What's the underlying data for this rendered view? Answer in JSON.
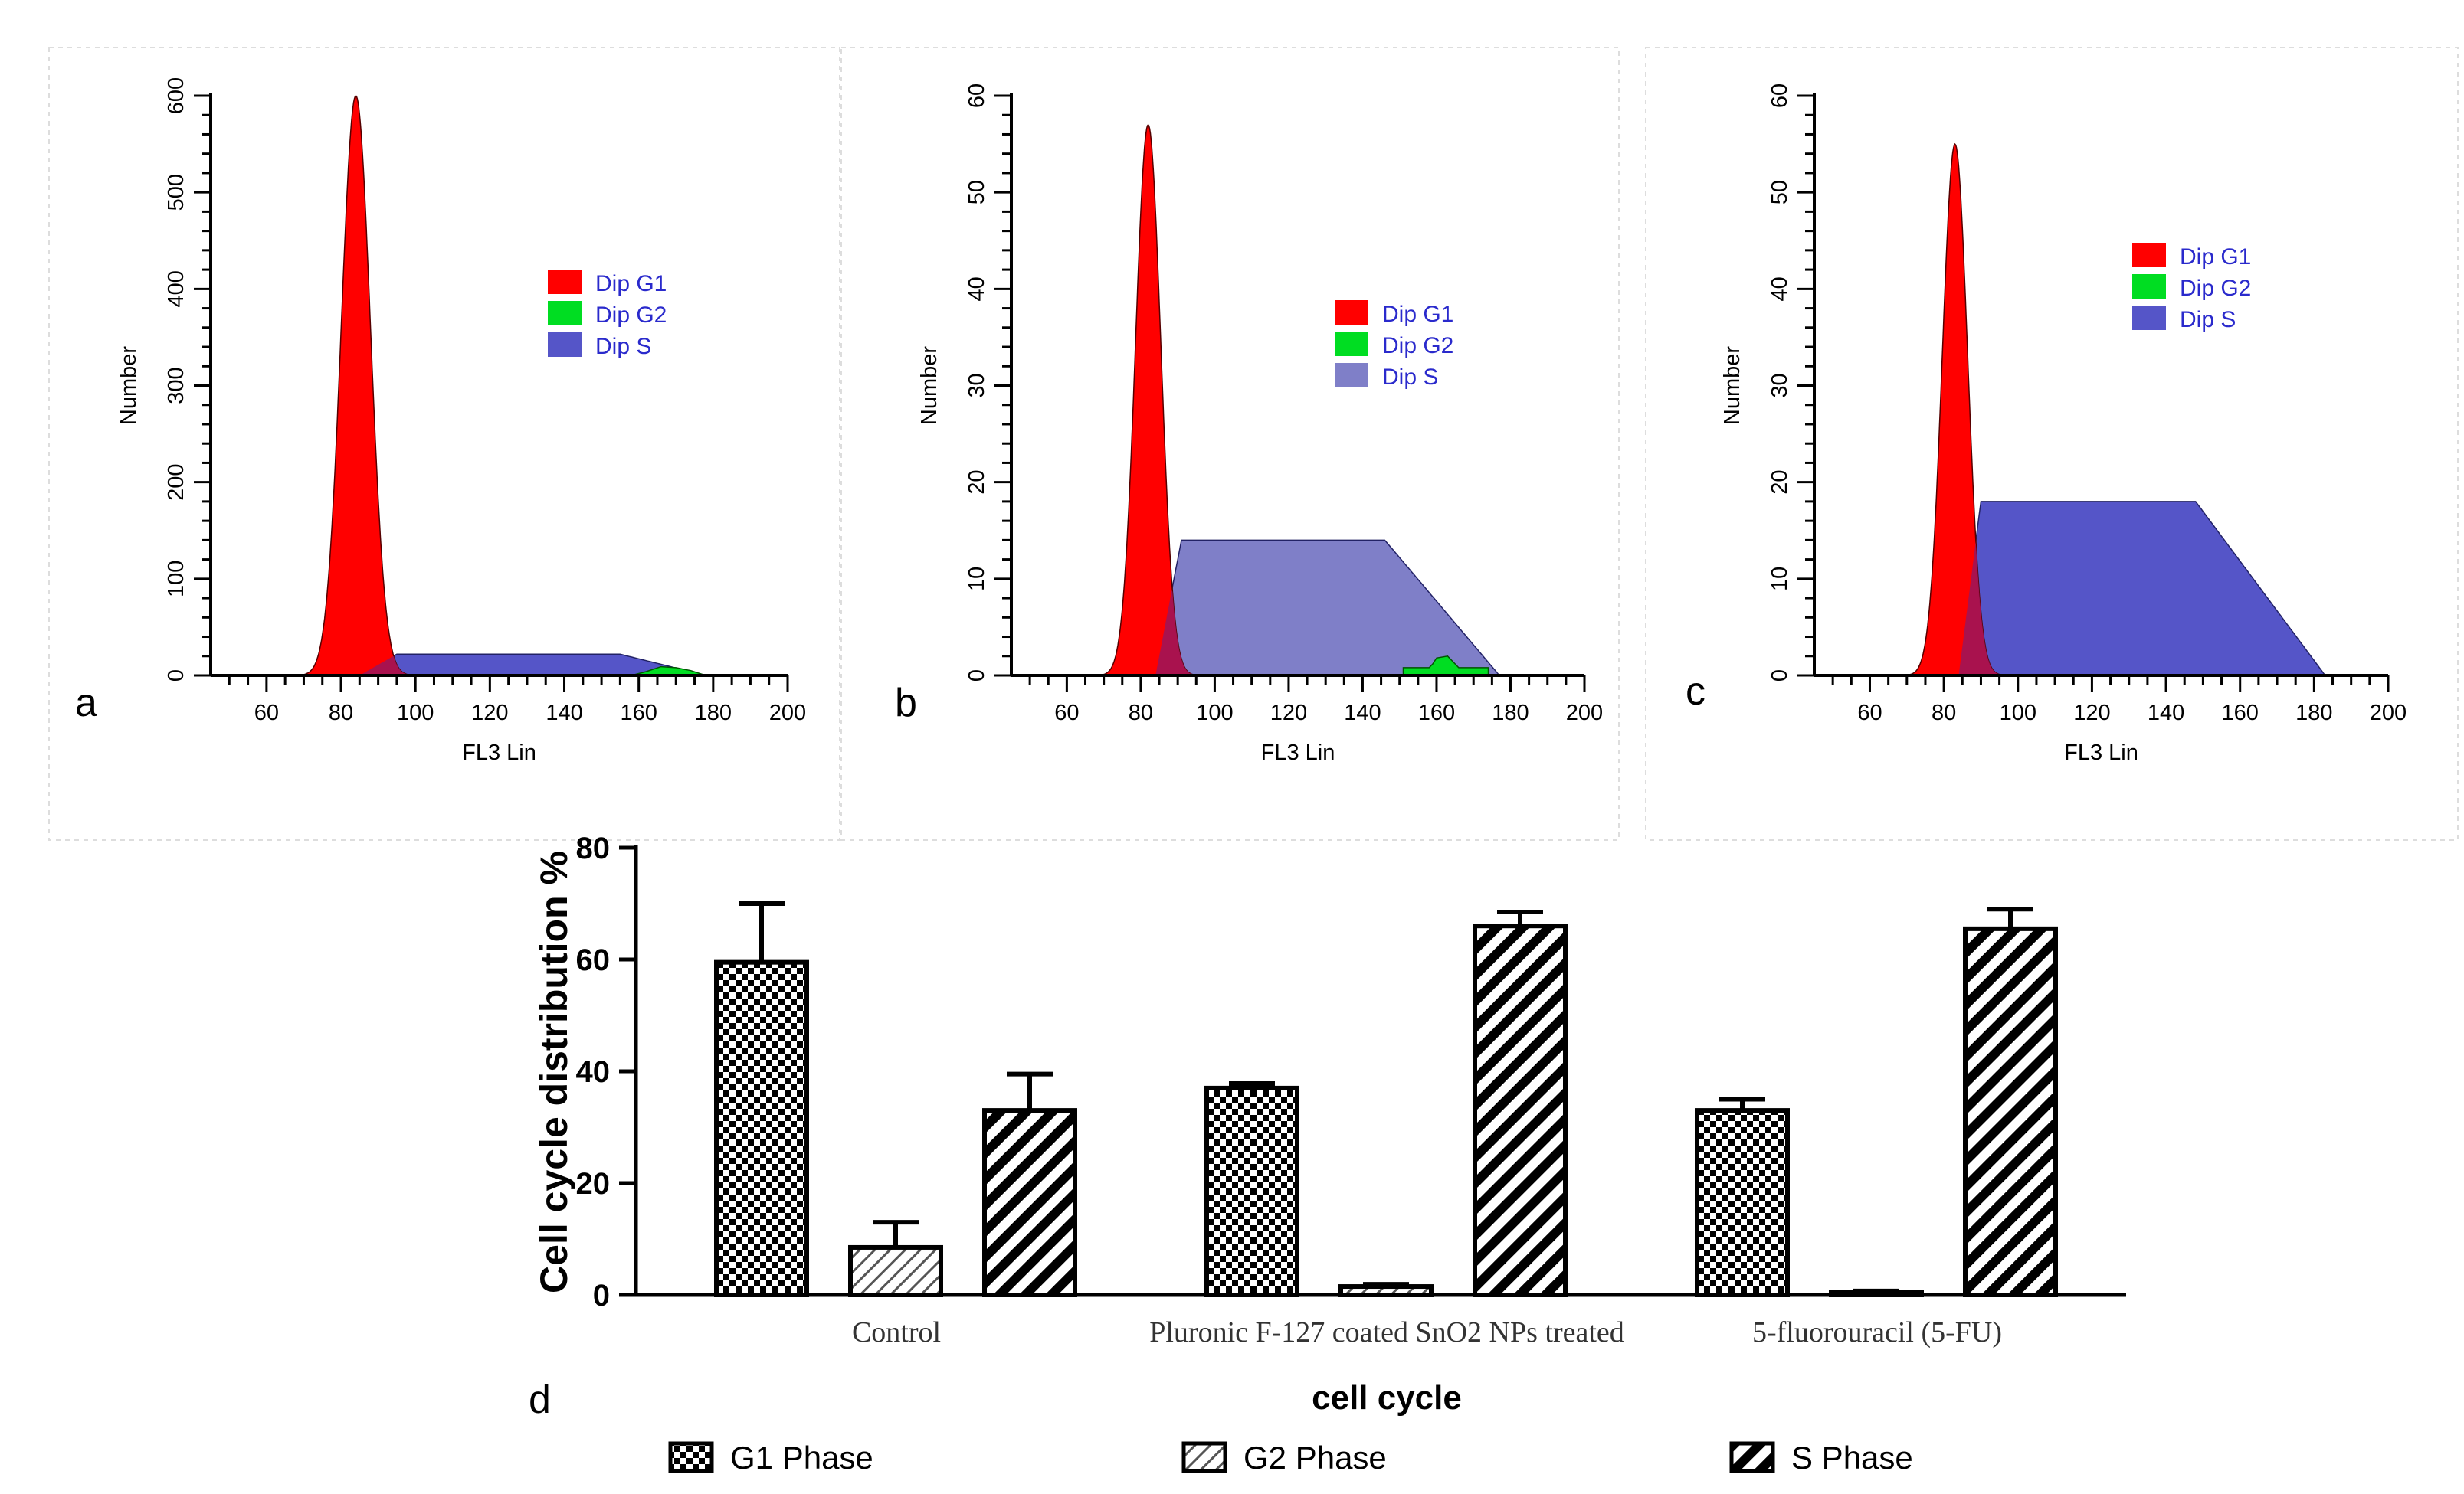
{
  "chart_data": [
    {
      "panel": "a",
      "type": "area",
      "xlabel": "FL3 Lin",
      "ylabel": "Number",
      "xlim": [
        45,
        200
      ],
      "ylim": [
        0,
        600
      ],
      "xticks": [
        60,
        80,
        100,
        120,
        140,
        160,
        180,
        200
      ],
      "yticks": [
        0,
        100,
        200,
        300,
        400,
        500,
        600
      ],
      "legend": [
        "Dip G1",
        "Dip G2",
        "Dip S"
      ],
      "series": [
        {
          "name": "Dip G1",
          "peak_x": 84,
          "peak_y": 600,
          "sigma": 3.9
        },
        {
          "name": "Dip S",
          "plateau_y": 22,
          "start": 85,
          "rise_end": 95,
          "plateau_end": 155,
          "end": 178
        },
        {
          "name": "Dip G2",
          "points": [
            [
              158,
              0
            ],
            [
              162,
              4
            ],
            [
              166,
              9
            ],
            [
              170,
              8
            ],
            [
              174,
              5
            ],
            [
              178,
              0
            ]
          ]
        }
      ]
    },
    {
      "panel": "b",
      "type": "area",
      "xlabel": "FL3 Lin",
      "ylabel": "Number",
      "xlim": [
        45,
        200
      ],
      "ylim": [
        0,
        60
      ],
      "xticks": [
        60,
        80,
        100,
        120,
        140,
        160,
        180,
        200
      ],
      "yticks": [
        0,
        10,
        20,
        30,
        40,
        50,
        60
      ],
      "legend": [
        "Dip G1",
        "Dip G2",
        "Dip S"
      ],
      "series": [
        {
          "name": "Dip G1",
          "peak_x": 82,
          "peak_y": 57,
          "sigma": 3.4
        },
        {
          "name": "Dip S",
          "plateau_y": 14,
          "start": 84,
          "rise_end": 91,
          "plateau_end": 146,
          "end": 177
        },
        {
          "name": "Dip G2",
          "points": [
            [
              151,
              0
            ],
            [
              151,
              0.8
            ],
            [
              158,
              0.8
            ],
            [
              159,
              1.2
            ],
            [
              160,
              1.8
            ],
            [
              163,
              2
            ],
            [
              165,
              1.2
            ],
            [
              166,
              0.8
            ],
            [
              174,
              0.8
            ],
            [
              174,
              0
            ]
          ]
        }
      ]
    },
    {
      "panel": "c",
      "type": "area",
      "xlabel": "FL3 Lin",
      "ylabel": "Number",
      "xlim": [
        45,
        200
      ],
      "ylim": [
        0,
        60
      ],
      "xticks": [
        60,
        80,
        100,
        120,
        140,
        160,
        180,
        200
      ],
      "yticks": [
        0,
        10,
        20,
        30,
        40,
        50,
        60
      ],
      "legend": [
        "Dip G1",
        "Dip G2",
        "Dip S"
      ],
      "series": [
        {
          "name": "Dip G1",
          "peak_x": 83,
          "peak_y": 55,
          "sigma": 3.4
        },
        {
          "name": "Dip S",
          "plateau_y": 18,
          "start": 84,
          "rise_end": 90,
          "plateau_end": 148,
          "end": 183
        },
        {
          "name": "Dip G2",
          "points": []
        }
      ]
    },
    {
      "panel": "d",
      "type": "bar",
      "title": "",
      "xlabel": "cell cycle",
      "ylabel": "Cell cycle distribution %",
      "ylim": [
        0,
        80
      ],
      "yticks": [
        0,
        20,
        40,
        60,
        80
      ],
      "categories": [
        "Control",
        "Pluronic F-127 coated SnO2 NPs treated",
        "5-fluorouracil (5-FU)"
      ],
      "series": [
        {
          "name": "G1 Phase",
          "values": [
            59.5,
            37,
            33
          ],
          "errors": [
            10.5,
            0.8,
            2
          ]
        },
        {
          "name": "G2 Phase",
          "values": [
            8.5,
            1.5,
            0.5
          ],
          "errors": [
            4.5,
            0.4,
            0.2
          ]
        },
        {
          "name": "S Phase",
          "values": [
            33,
            66,
            65.5
          ],
          "errors": [
            6.5,
            2.5,
            3.5
          ]
        }
      ]
    }
  ],
  "panel_labels": [
    "a",
    "b",
    "c",
    "d"
  ],
  "colors": {
    "g1": "#ff0000",
    "g2": "#00dd22",
    "s": "#5555c8",
    "s_b": "#7f7fc8",
    "overlap": "#a01457",
    "legend_text": "#2a2acc",
    "axis": "#000000"
  }
}
